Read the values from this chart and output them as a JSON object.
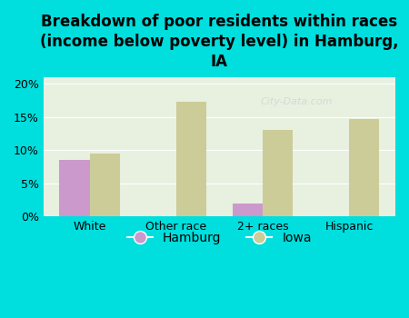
{
  "title": "Breakdown of poor residents within races\n(income below poverty level) in Hamburg,\nIA",
  "categories": [
    "White",
    "Other race",
    "2+ races",
    "Hispanic"
  ],
  "hamburg_values": [
    8.5,
    0,
    2.0,
    0
  ],
  "iowa_values": [
    9.5,
    17.2,
    13.0,
    14.7
  ],
  "hamburg_color": "#cc99cc",
  "iowa_color": "#cccc99",
  "background_color": "#00dede",
  "plot_bg_color": "#e8f0e0",
  "ylim": [
    0,
    21
  ],
  "yticks": [
    0,
    5,
    10,
    15,
    20
  ],
  "bar_width": 0.35,
  "title_fontsize": 12,
  "tick_fontsize": 9,
  "legend_fontsize": 10
}
